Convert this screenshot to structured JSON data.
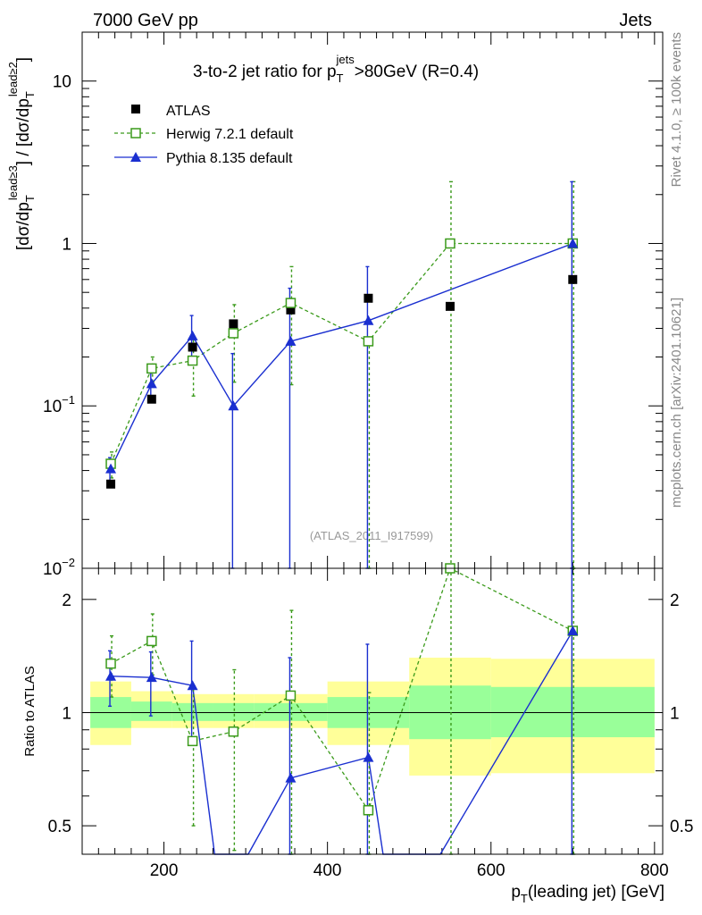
{
  "header": {
    "energy": "7000 GeV pp",
    "category": "Jets",
    "watermark": "(ATLAS_2011_I917599)",
    "side_top": "Rivet 4.1.0, ≥ 100k events",
    "side_bottom": "mcplots.cern.ch [arXiv:2401.10621]"
  },
  "chart_data": [
    {
      "type": "scatter",
      "panel": "main",
      "title_parts": [
        "3-to-2 jet ratio for p",
        "T",
        "jets",
        ">80GeV (R=0.4)"
      ],
      "ylabel": "[dσ/dp_T^{lead≥3}] / [dσ/dp_T^{lead≥2}]",
      "yscale": "log",
      "ylim": [
        0.01,
        20
      ],
      "xlim": [
        100,
        810
      ],
      "y_ticks": [
        {
          "v": 10,
          "base": "10",
          "exp": ""
        },
        {
          "v": 1,
          "base": "1",
          "exp": ""
        },
        {
          "v": 0.1,
          "base": "10",
          "exp": "−1"
        },
        {
          "v": 0.01,
          "base": "10",
          "exp": "−2"
        }
      ],
      "legend": [
        {
          "label": "ATLAS",
          "style": "black-square"
        },
        {
          "label": "Herwig 7.2.1 default",
          "style": "green-open-square-dashed"
        },
        {
          "label": "Pythia 8.135 default",
          "style": "blue-triangle-solid"
        }
      ],
      "series": [
        {
          "name": "ATLAS",
          "color": "#000000",
          "x": [
            135,
            185,
            235,
            285,
            355,
            450,
            550,
            700
          ],
          "y": [
            0.033,
            0.11,
            0.23,
            0.32,
            0.39,
            0.46,
            0.41,
            0.6
          ],
          "err_lo": [
            0.032,
            0.1,
            0.2,
            0.29,
            0.35,
            0.4,
            0.38,
            0.55
          ],
          "err_hi": [
            0.034,
            0.12,
            0.26,
            0.35,
            0.43,
            0.52,
            0.44,
            0.65
          ]
        },
        {
          "name": "Herwig 7.2.1 default",
          "color": "#3a9a1a",
          "x": [
            135,
            185,
            235,
            285,
            355,
            450,
            550,
            700
          ],
          "y": [
            0.044,
            0.17,
            0.19,
            0.28,
            0.43,
            0.25,
            1.0,
            1.0
          ],
          "err_lo": [
            0.036,
            0.14,
            0.115,
            0.14,
            0.135,
            0.01,
            0.01,
            0.01
          ],
          "err_hi": [
            0.052,
            0.2,
            0.265,
            0.42,
            0.72,
            0.25,
            2.4,
            2.4
          ]
        },
        {
          "name": "Pythia 8.135 default",
          "color": "#1a2fd0",
          "x": [
            135,
            185,
            235,
            285,
            355,
            450,
            700
          ],
          "y": [
            0.041,
            0.137,
            0.27,
            0.1,
            0.25,
            0.335,
            1.0
          ],
          "err_lo": [
            0.034,
            0.115,
            0.2,
            0.01,
            0.01,
            0.01,
            0.01
          ],
          "err_hi": [
            0.048,
            0.159,
            0.36,
            0.21,
            0.53,
            0.72,
            2.4
          ],
          "line_x": [
            135,
            185,
            235,
            285,
            355,
            450,
            700
          ],
          "line_y": [
            0.041,
            0.137,
            0.27,
            0.1,
            0.25,
            0.335,
            1.0
          ]
        }
      ]
    },
    {
      "type": "line",
      "panel": "ratio",
      "ylabel": "Ratio to ATLAS",
      "xlabel": "p_T(leading jet) [GeV]",
      "xlabel_parts": [
        "p",
        "T",
        "(leading jet) [GeV]"
      ],
      "yscale": "log",
      "ylim": [
        0.42,
        2.42
      ],
      "xlim": [
        100,
        810
      ],
      "x_ticks": [
        200,
        400,
        600,
        800
      ],
      "y_ticks": [
        {
          "v": 0.5,
          "label": "0.5"
        },
        {
          "v": 1,
          "label": "1"
        },
        {
          "v": 2,
          "label": "2"
        }
      ],
      "bands": [
        {
          "x0": 110,
          "x1": 160,
          "yellow": [
            0.82,
            1.21
          ],
          "green": [
            0.91,
            1.1
          ]
        },
        {
          "x0": 160,
          "x1": 210,
          "yellow": [
            0.91,
            1.14
          ],
          "green": [
            0.95,
            1.07
          ]
        },
        {
          "x0": 210,
          "x1": 260,
          "yellow": [
            0.91,
            1.12
          ],
          "green": [
            0.95,
            1.06
          ]
        },
        {
          "x0": 260,
          "x1": 310,
          "yellow": [
            0.91,
            1.12
          ],
          "green": [
            0.95,
            1.06
          ]
        },
        {
          "x0": 310,
          "x1": 400,
          "yellow": [
            0.91,
            1.12
          ],
          "green": [
            0.95,
            1.06
          ]
        },
        {
          "x0": 400,
          "x1": 500,
          "yellow": [
            0.82,
            1.21
          ],
          "green": [
            0.91,
            1.1
          ]
        },
        {
          "x0": 500,
          "x1": 600,
          "yellow": [
            0.68,
            1.4
          ],
          "green": [
            0.85,
            1.18
          ]
        },
        {
          "x0": 600,
          "x1": 800,
          "yellow": [
            0.69,
            1.39
          ],
          "green": [
            0.86,
            1.17
          ]
        }
      ],
      "series": [
        {
          "name": "Herwig 7.2.1 default",
          "color": "#3a9a1a",
          "x": [
            135,
            185,
            235,
            285,
            355,
            450,
            550,
            700
          ],
          "y": [
            1.35,
            1.55,
            0.84,
            0.89,
            1.11,
            0.55,
            2.42,
            1.65
          ],
          "err_lo": [
            1.1,
            1.26,
            0.5,
            0.43,
            0.35,
            0.42,
            0.42,
            0.42
          ],
          "err_hi": [
            1.6,
            1.83,
            1.18,
            1.3,
            1.87,
            1.13,
            2.42,
            2.42
          ]
        },
        {
          "name": "Pythia 8.135 default",
          "color": "#1a2fd0",
          "x": [
            135,
            185,
            235,
            355,
            450,
            700
          ],
          "y": [
            1.25,
            1.24,
            1.18,
            0.67,
            0.76,
            1.65
          ],
          "err_lo": [
            1.04,
            0.98,
            0.85,
            0.42,
            0.42,
            0.42
          ],
          "err_hi": [
            1.46,
            1.45,
            1.55,
            1.4,
            1.52,
            2.42
          ],
          "line_x": [
            135,
            185,
            235,
            262,
            303,
            355,
            450,
            468,
            538,
            700
          ],
          "line_y": [
            1.25,
            1.24,
            1.18,
            0.42,
            0.42,
            0.67,
            0.76,
            0.42,
            0.42,
            1.65
          ]
        }
      ]
    }
  ]
}
